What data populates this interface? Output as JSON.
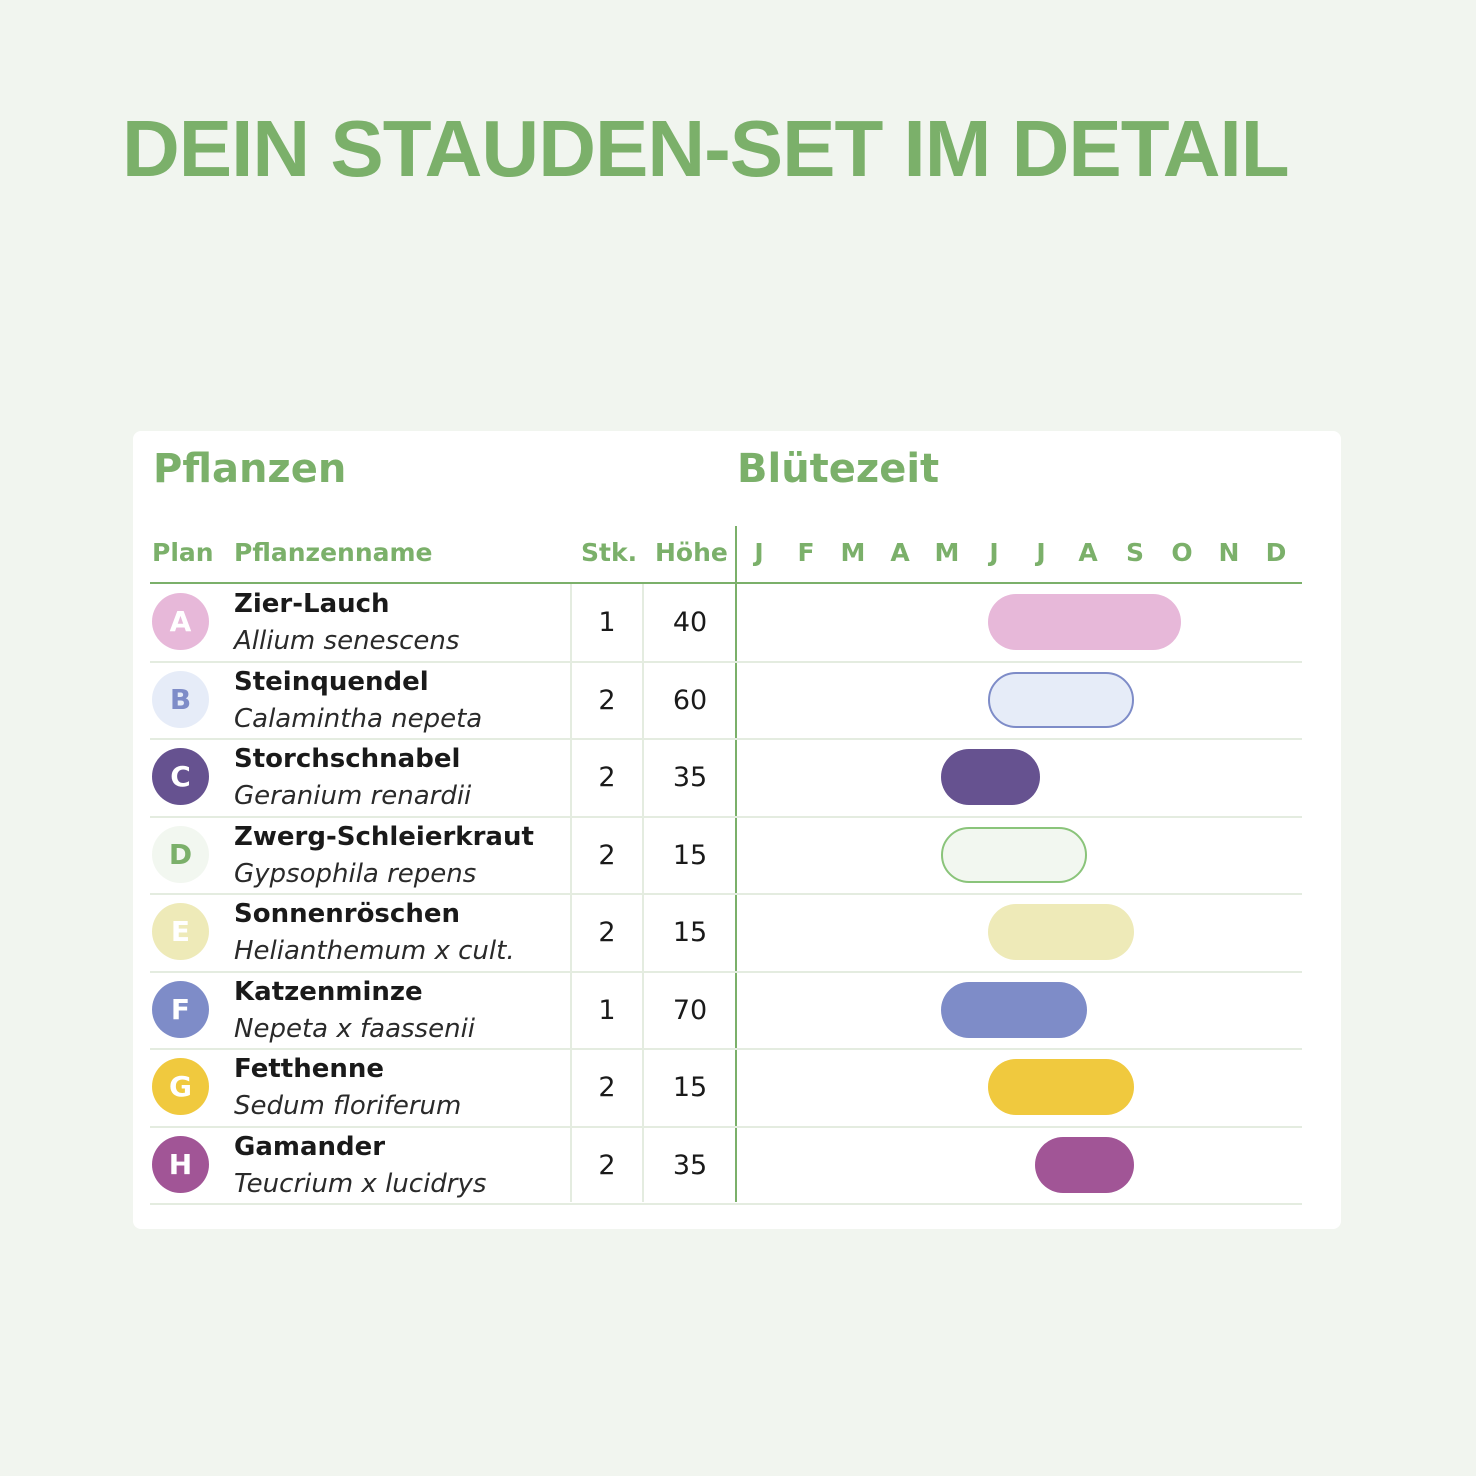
{
  "title": "DEIN STAUDEN-SET IM DETAIL",
  "table": {
    "section_plants": "Pflanzen",
    "section_bloom": "Blütezeit",
    "col_plan": "Plan",
    "col_name": "Pflanzenname",
    "col_qty": "Stk.",
    "col_height": "Höhe",
    "months": [
      "J",
      "F",
      "M",
      "A",
      "M",
      "J",
      "J",
      "A",
      "S",
      "O",
      "N",
      "D"
    ],
    "rows": [
      {
        "plan": "A",
        "name": "Zier-Lauch",
        "latin": "Allium senescens",
        "qty": "1",
        "height": "40",
        "bloom_start": 6,
        "bloom_end": 9,
        "color": "#e7b8d9",
        "outlined": false
      },
      {
        "plan": "B",
        "name": "Steinquendel",
        "latin": "Calamintha nepeta",
        "qty": "2",
        "height": "60",
        "bloom_start": 6,
        "bloom_end": 8,
        "color": "#e6ecf8",
        "outlined": true,
        "border": "#7e8cc8",
        "letter_color": "#7e8cc8"
      },
      {
        "plan": "C",
        "name": "Storchschnabel",
        "latin": "Geranium renardii",
        "qty": "2",
        "height": "35",
        "bloom_start": 5,
        "bloom_end": 6,
        "color": "#665290",
        "outlined": false
      },
      {
        "plan": "D",
        "name": "Zwerg-Schleierkraut",
        "latin": "Gypsophila repens",
        "qty": "2",
        "height": "15",
        "bloom_start": 5,
        "bloom_end": 7,
        "color": "#f2f7f0",
        "outlined": true,
        "border": "#8ac47a",
        "letter_color": "#7bb06a"
      },
      {
        "plan": "E",
        "name": "Sonnenröschen",
        "latin": "Helianthemum x cult.",
        "qty": "2",
        "height": "15",
        "bloom_start": 6,
        "bloom_end": 8,
        "color": "#eeeab8",
        "outlined": false
      },
      {
        "plan": "F",
        "name": "Katzenminze",
        "latin": "Nepeta x faassenii",
        "qty": "1",
        "height": "70",
        "bloom_start": 5,
        "bloom_end": 7,
        "color": "#7e8cc8",
        "outlined": false
      },
      {
        "plan": "G",
        "name": "Fetthenne",
        "latin": "Sedum floriferum",
        "qty": "2",
        "height": "15",
        "bloom_start": 6,
        "bloom_end": 8,
        "color": "#f0c93e",
        "outlined": false
      },
      {
        "plan": "H",
        "name": "Gamander",
        "latin": "Teucrium x lucidrys",
        "qty": "2",
        "height": "35",
        "bloom_start": 7,
        "bloom_end": 8,
        "color": "#a15596",
        "outlined": false
      }
    ]
  }
}
